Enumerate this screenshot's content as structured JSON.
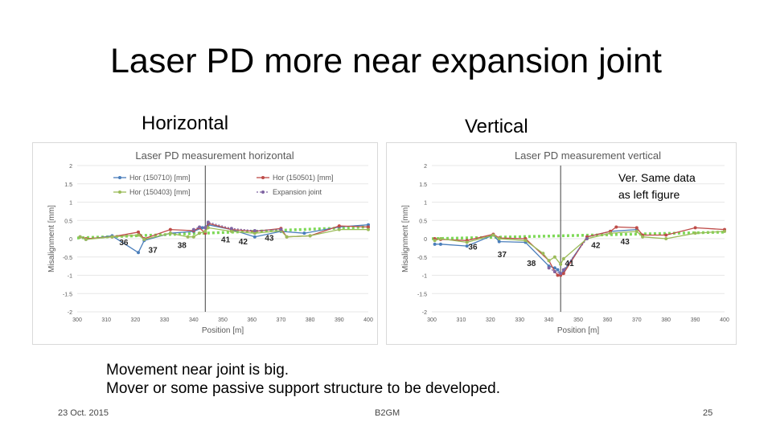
{
  "slide": {
    "title": "Laser PD more near expansion joint",
    "sub_horizontal": "Horizontal",
    "sub_vertical": "Vertical",
    "movement_line1": "Movement near joint is big.",
    "movement_line2": "Mover or some passive support structure to be developed.",
    "footer_date": "23 Oct. 2015",
    "footer_org": "B2GM",
    "footer_page": "25"
  },
  "chart_data": [
    {
      "type": "line",
      "title": "Laser PD measurement horizontal",
      "xlabel": "Position [m]",
      "ylabel": "Misalignment [mm]",
      "xlim": [
        300,
        400
      ],
      "ylim": [
        -2,
        2
      ],
      "xticks": [
        "300",
        "310",
        "320",
        "330",
        "340",
        "350",
        "360",
        "370",
        "380",
        "390",
        "400"
      ],
      "yticks": [
        "-2",
        "-1.5",
        "-1",
        "-0.5",
        "0",
        "0.5",
        "1",
        "1.5",
        "2"
      ],
      "legend_position": "top",
      "expansion_joint_x": 344,
      "series": [
        {
          "name": "Hor (150710) [mm]",
          "color": "#4a7ebb",
          "x": [
            301,
            303,
            312,
            321,
            323,
            332,
            340,
            343,
            345,
            353,
            361,
            370,
            378,
            390,
            400
          ],
          "y": [
            0.05,
            -0.02,
            0.08,
            -0.38,
            -0.05,
            0.15,
            0.2,
            0.3,
            0.38,
            0.25,
            0.05,
            0.2,
            0.15,
            0.32,
            0.38
          ]
        },
        {
          "name": "Hor (150501) [mm]",
          "color": "#be4b48",
          "x": [
            301,
            303,
            312,
            321,
            323,
            332,
            340,
            342,
            344,
            345,
            353,
            361,
            370,
            372,
            380,
            390,
            400
          ],
          "y": [
            0.05,
            0.0,
            0.05,
            0.18,
            0.0,
            0.25,
            0.22,
            0.3,
            0.15,
            0.42,
            0.25,
            0.2,
            0.28,
            0.05,
            0.08,
            0.35,
            0.32
          ]
        },
        {
          "name": "Hor (150403) [mm]",
          "color": "#9bbb59",
          "x": [
            301,
            303,
            312,
            321,
            323,
            332,
            338,
            340,
            342,
            344,
            345,
            353,
            361,
            370,
            372,
            380,
            390,
            400
          ],
          "y": [
            0.05,
            -0.02,
            0.05,
            0.1,
            -0.02,
            0.15,
            0.05,
            0.05,
            0.15,
            0.2,
            0.3,
            0.2,
            0.15,
            0.22,
            0.05,
            0.08,
            0.25,
            0.25
          ]
        },
        {
          "name": "Expansion joint",
          "color": "#7f64a2",
          "x": [
            340,
            342,
            344,
            345,
            353,
            361,
            370
          ],
          "y": [
            0.25,
            0.32,
            0.3,
            0.45,
            0.28,
            0.22,
            0.25
          ]
        }
      ],
      "trend": {
        "color": "#7ed957",
        "x": [
          300,
          400
        ],
        "y": [
          0.02,
          0.32
        ]
      },
      "annotations": [
        {
          "text": "36",
          "x": 316,
          "y": -0.18
        },
        {
          "text": "37",
          "x": 326,
          "y": -0.38
        },
        {
          "text": "38",
          "x": 336,
          "y": -0.25
        },
        {
          "text": "41",
          "x": 351,
          "y": -0.1
        },
        {
          "text": "42",
          "x": 357,
          "y": -0.15
        },
        {
          "text": "43",
          "x": 366,
          "y": -0.05
        }
      ]
    },
    {
      "type": "line",
      "title": "Laser PD measurement vertical",
      "xlabel": "Position [m]",
      "ylabel": "Misalignment [mm]",
      "xlim": [
        300,
        400
      ],
      "ylim": [
        -2,
        2
      ],
      "xticks": [
        "300",
        "310",
        "320",
        "330",
        "340",
        "350",
        "360",
        "370",
        "380",
        "390",
        "400"
      ],
      "yticks": [
        "-2",
        "-1.5",
        "-1",
        "-0.5",
        "0",
        "0.5",
        "1",
        "1.5",
        "2"
      ],
      "expansion_joint_x": 344,
      "note": "Ver. Same data as left figure",
      "series": [
        {
          "name": "Hor (150710) [mm]",
          "color": "#4a7ebb",
          "x": [
            301,
            303,
            312,
            321,
            323,
            332,
            340,
            342,
            343,
            344,
            345,
            353,
            361,
            370
          ],
          "y": [
            -0.15,
            -0.15,
            -0.2,
            0.1,
            -0.08,
            -0.1,
            -0.75,
            -0.8,
            -0.85,
            -0.95,
            -0.9,
            0.05,
            0.2,
            0.25
          ]
        },
        {
          "name": "Hor (150501) [mm]",
          "color": "#be4b48",
          "x": [
            301,
            303,
            312,
            321,
            323,
            332,
            340,
            342,
            343,
            344,
            345,
            353,
            361,
            363,
            370,
            372,
            380,
            390,
            400
          ],
          "y": [
            0.0,
            -0.02,
            -0.05,
            0.12,
            0.02,
            0.0,
            -0.6,
            -0.9,
            -1.0,
            -1.0,
            -0.95,
            0.05,
            0.2,
            0.32,
            0.3,
            0.1,
            0.1,
            0.3,
            0.25
          ]
        },
        {
          "name": "Hor (150403) [mm]",
          "color": "#9bbb59",
          "x": [
            301,
            303,
            312,
            321,
            323,
            332,
            338,
            340,
            342,
            344,
            345,
            353,
            361,
            370,
            372,
            380,
            390,
            400
          ],
          "y": [
            -0.05,
            0.0,
            -0.1,
            0.1,
            0.0,
            -0.05,
            -0.4,
            -0.6,
            -0.5,
            -0.7,
            -0.55,
            0.0,
            0.15,
            0.2,
            0.05,
            0.0,
            0.15,
            0.2
          ]
        },
        {
          "name": "Expansion joint",
          "color": "#7f64a2",
          "x": [
            340,
            342,
            344,
            345,
            353
          ],
          "y": [
            -0.8,
            -0.9,
            -0.95,
            -0.85,
            0.0
          ]
        }
      ],
      "trend": {
        "color": "#7ed957",
        "x": [
          300,
          400
        ],
        "y": [
          0.0,
          0.18
        ]
      },
      "annotations": [
        {
          "text": "36",
          "x": 314,
          "y": -0.3
        },
        {
          "text": "37",
          "x": 324,
          "y": -0.5
        },
        {
          "text": "38",
          "x": 334,
          "y": -0.75
        },
        {
          "text": "41",
          "x": 347,
          "y": -0.75
        },
        {
          "text": "42",
          "x": 356,
          "y": -0.25
        },
        {
          "text": "43",
          "x": 366,
          "y": -0.15
        }
      ]
    }
  ]
}
